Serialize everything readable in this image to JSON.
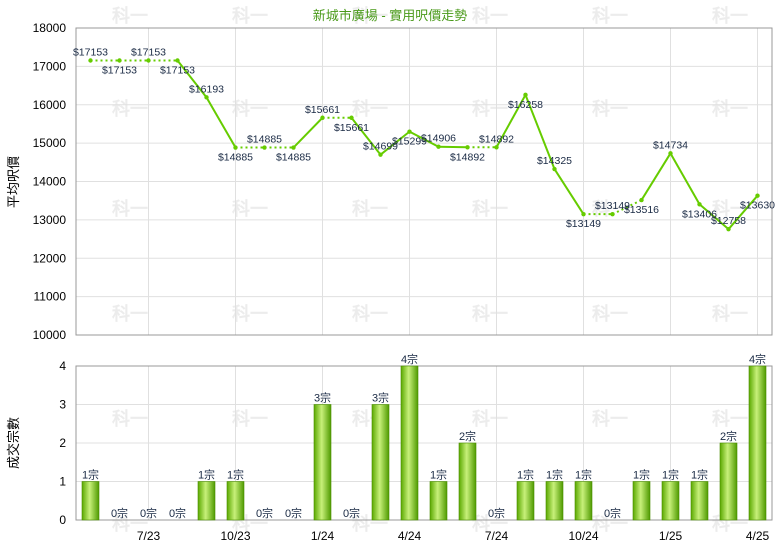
{
  "chart_data": [
    {
      "type": "line",
      "title": "新城市廣場 - 實用呎價走勢",
      "ylabel": "平均呎價",
      "ylim": [
        10000,
        18000
      ],
      "yticks": [
        10000,
        11000,
        12000,
        13000,
        14000,
        15000,
        16000,
        17000,
        18000
      ],
      "xtick_labels": [
        "7/23",
        "10/23",
        "1/24",
        "4/24",
        "7/24",
        "10/24",
        "1/25",
        "4/25"
      ],
      "series": [
        {
          "values": [
            17153,
            17153,
            17153,
            17153,
            16193,
            14885,
            14885,
            14885,
            15661,
            15661,
            14699,
            15299,
            14906,
            14892,
            14892,
            16258,
            14325,
            13149,
            13149,
            13516,
            14734,
            13406,
            12758,
            13630
          ],
          "labels": [
            "$17153",
            "$17153",
            "$17153",
            "$17153",
            "$16193",
            "$14885",
            "$14885",
            "$14885",
            "$15661",
            "$15661",
            "$14699",
            "$15299",
            "$14906",
            "$14892",
            "$14892",
            "$16258",
            "$14325",
            "$13149",
            "$13149",
            "$13516",
            "$14734",
            "$13406",
            "$12758",
            "$13630"
          ],
          "interpolated": [
            false,
            true,
            false,
            false,
            false,
            false,
            true,
            false,
            false,
            false,
            false,
            false,
            false,
            false,
            false,
            false,
            false,
            false,
            true,
            false,
            false,
            false,
            false,
            false
          ],
          "color": "#66cc00"
        }
      ],
      "grid": true
    },
    {
      "type": "bar",
      "ylabel": "成交宗數",
      "ylim": [
        0,
        4
      ],
      "yticks": [
        0,
        1,
        2,
        3,
        4
      ],
      "xtick_labels": [
        "7/23",
        "10/23",
        "1/24",
        "4/24",
        "7/24",
        "10/24",
        "1/25",
        "4/25"
      ],
      "series": [
        {
          "values": [
            1,
            0,
            0,
            0,
            1,
            1,
            0,
            0,
            3,
            0,
            3,
            4,
            1,
            2,
            0,
            1,
            1,
            1,
            0,
            1,
            1,
            1,
            2,
            4
          ],
          "labels": [
            "1宗",
            "0宗",
            "0宗",
            "0宗",
            "1宗",
            "1宗",
            "0宗",
            "0宗",
            "3宗",
            "0宗",
            "3宗",
            "4宗",
            "1宗",
            "2宗",
            "0宗",
            "1宗",
            "1宗",
            "1宗",
            "0宗",
            "1宗",
            "1宗",
            "1宗",
            "2宗",
            "4宗"
          ],
          "color": "#7fcc22"
        }
      ],
      "grid": true
    }
  ],
  "watermark_text": "科一"
}
